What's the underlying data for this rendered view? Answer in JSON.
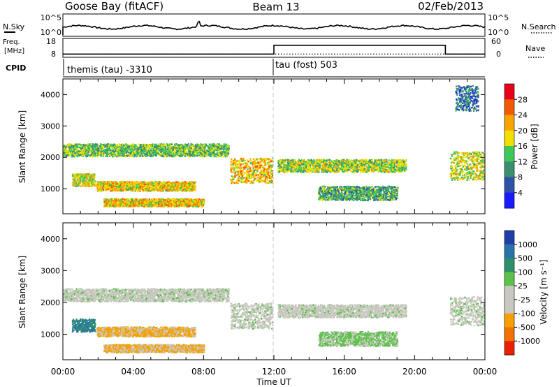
{
  "header": {
    "station": "Goose Bay (fitACF)",
    "beam": "Beam 13",
    "date": "02/Feb/2013"
  },
  "noise_panel": {
    "left_label": "N.Sky",
    "right_label": "N.Search",
    "left_ticks": [
      "10^5",
      "10^0"
    ],
    "right_ticks": [
      "10^5",
      "10^0"
    ]
  },
  "freq_panel": {
    "left_label_1": "Freq.",
    "left_label_2": "[MHz]",
    "right_label": "Nave",
    "left_ticks": [
      "18",
      "8"
    ],
    "right_ticks": [
      "60",
      "0"
    ]
  },
  "cpid_panel": {
    "label": "CPID",
    "segments": [
      {
        "start_hour": 0,
        "text": "themis (tau) -3310"
      },
      {
        "start_hour": 12,
        "text": "tau (fost) 503"
      }
    ]
  },
  "chart_data": [
    {
      "type": "heatmap",
      "name": "power",
      "ylabel": "Slant Range [km]",
      "xlabel": "Time UT",
      "xlim": [
        0,
        24
      ],
      "ylim": [
        200,
        4500
      ],
      "xticks": [
        "00:00",
        "04:00",
        "08:00",
        "12:00",
        "16:00",
        "20:00",
        "00:00"
      ],
      "yticks": [
        1000,
        2000,
        3000,
        4000
      ],
      "colorbar": {
        "label": "Power [dB]",
        "ticks": [
          "28",
          "24",
          "20",
          "16",
          "12",
          "8",
          "4"
        ],
        "colors": [
          "#e8001a",
          "#f05a00",
          "#f7a400",
          "#f2df00",
          "#3fc85a",
          "#3b8f6f",
          "#2d52a6",
          "#1a1aff"
        ]
      },
      "echo_bands": [
        {
          "t0": 0.0,
          "t1": 9.4,
          "r0": 2050,
          "r1": 2450,
          "level": 12
        },
        {
          "t0": 0.5,
          "t1": 1.8,
          "r0": 1100,
          "r1": 1500,
          "level": 16
        },
        {
          "t0": 1.9,
          "t1": 7.5,
          "r0": 950,
          "r1": 1250,
          "level": 18
        },
        {
          "t0": 2.3,
          "t1": 8.0,
          "r0": 450,
          "r1": 700,
          "level": 18
        },
        {
          "t0": 9.5,
          "t1": 11.9,
          "r0": 1200,
          "r1": 2000,
          "level": 18
        },
        {
          "t0": 12.2,
          "t1": 19.5,
          "r0": 1550,
          "r1": 1950,
          "level": 14
        },
        {
          "t0": 14.5,
          "t1": 19.0,
          "r0": 650,
          "r1": 1100,
          "level": 10
        },
        {
          "t0": 22.0,
          "t1": 24.0,
          "r0": 1300,
          "r1": 2200,
          "level": 15
        },
        {
          "t0": 22.3,
          "t1": 23.6,
          "r0": 3500,
          "r1": 4300,
          "level": 6
        }
      ]
    },
    {
      "type": "heatmap",
      "name": "velocity",
      "ylabel": "Slant Range [km]",
      "xlabel": "Time UT",
      "xlim": [
        0,
        24
      ],
      "ylim": [
        200,
        4500
      ],
      "xticks": [
        "00:00",
        "04:00",
        "08:00",
        "12:00",
        "16:00",
        "20:00",
        "00:00"
      ],
      "yticks": [
        1000,
        2000,
        3000,
        4000
      ],
      "colorbar": {
        "label": "Velocity [m s⁻¹]",
        "ticks": [
          "1000",
          "500",
          "100",
          "25",
          "-25",
          "-100",
          "-500",
          "-1000"
        ],
        "colors": [
          "#1f3fa8",
          "#2a73a8",
          "#2f8f6a",
          "#5cc04a",
          "#c8c8c0",
          "#c8c8c0",
          "#f5a000",
          "#f07000",
          "#e82000"
        ]
      },
      "echo_bands": [
        {
          "t0": 0.0,
          "t1": 9.4,
          "r0": 2050,
          "r1": 2450,
          "vel": 0
        },
        {
          "t0": 0.5,
          "t1": 1.8,
          "r0": 1100,
          "r1": 1500,
          "vel": 300
        },
        {
          "t0": 1.9,
          "t1": 7.5,
          "r0": 950,
          "r1": 1250,
          "vel": -150
        },
        {
          "t0": 2.3,
          "t1": 8.0,
          "r0": 450,
          "r1": 700,
          "vel": -120
        },
        {
          "t0": 9.5,
          "t1": 11.9,
          "r0": 1200,
          "r1": 2000,
          "vel": 0
        },
        {
          "t0": 12.2,
          "t1": 19.5,
          "r0": 1550,
          "r1": 1950,
          "vel": 0
        },
        {
          "t0": 14.5,
          "t1": 19.0,
          "r0": 650,
          "r1": 1100,
          "vel": 60
        },
        {
          "t0": 22.0,
          "t1": 24.0,
          "r0": 1300,
          "r1": 2200,
          "vel": 0
        }
      ]
    }
  ]
}
